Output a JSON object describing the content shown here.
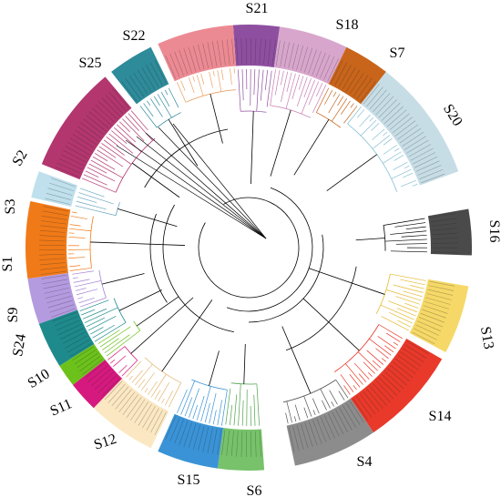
{
  "figure": {
    "background": "#ffffff",
    "branch_color": "#000000"
  },
  "clades": [
    {
      "id": "S21",
      "label": "S21",
      "color": "#8e4fa0",
      "branch_color": "#8e4fa0"
    },
    {
      "id": "S18",
      "label": "S18",
      "color": "#d8a6cc",
      "branch_color": "#c77db2"
    },
    {
      "id": "S7",
      "label": "S7",
      "color": "#c8651b",
      "branch_color": "#c8651b"
    },
    {
      "id": "S20",
      "label": "S20",
      "color": "#c7dde6",
      "branch_color": "#86bfd3"
    },
    {
      "id": "S16",
      "label": "S16",
      "color": "#4a4a4a",
      "branch_color": "#000000"
    },
    {
      "id": "S13",
      "label": "S13",
      "color": "#f5d867",
      "branch_color": "#e5b92f"
    },
    {
      "id": "S14",
      "label": "S14",
      "color": "#e8392a",
      "branch_color": "#e8392a"
    },
    {
      "id": "S4",
      "label": "S4",
      "color": "#8c8c8c",
      "branch_color": "#555555"
    },
    {
      "id": "S6",
      "label": "S6",
      "color": "#77c26a",
      "branch_color": "#4da34a"
    },
    {
      "id": "S15",
      "label": "S15",
      "color": "#3a93d6",
      "branch_color": "#3a93d6"
    },
    {
      "id": "S12",
      "label": "S12",
      "color": "#fbe8c2",
      "branch_color": "#e3b772"
    },
    {
      "id": "S11",
      "label": "S11",
      "color": "#d6197e",
      "branch_color": "#d6197e"
    },
    {
      "id": "S10",
      "label": "S10",
      "color": "#6cc21b",
      "branch_color": "#6cc21b"
    },
    {
      "id": "S24",
      "label": "S24",
      "color": "#1e8a8c",
      "branch_color": "#1e8a8c"
    },
    {
      "id": "S9",
      "label": "S9",
      "color": "#b49adf",
      "branch_color": "#a582d4"
    },
    {
      "id": "S1",
      "label": "S1",
      "color": "#f07a18",
      "branch_color": "#f07a18"
    },
    {
      "id": "S3",
      "label": "S3",
      "color": "#bfe0ec",
      "branch_color": "#6aa6c0"
    },
    {
      "id": "S2",
      "label": "S2",
      "color": "#b3366f",
      "branch_color": "#b3366f"
    },
    {
      "id": "S25",
      "label": "S25",
      "color": "#2e8b9a",
      "branch_color": "#2e8b9a"
    },
    {
      "id": "S22",
      "label": "S22",
      "color": "#ec8a93",
      "branch_color": "#e8a266"
    }
  ]
}
